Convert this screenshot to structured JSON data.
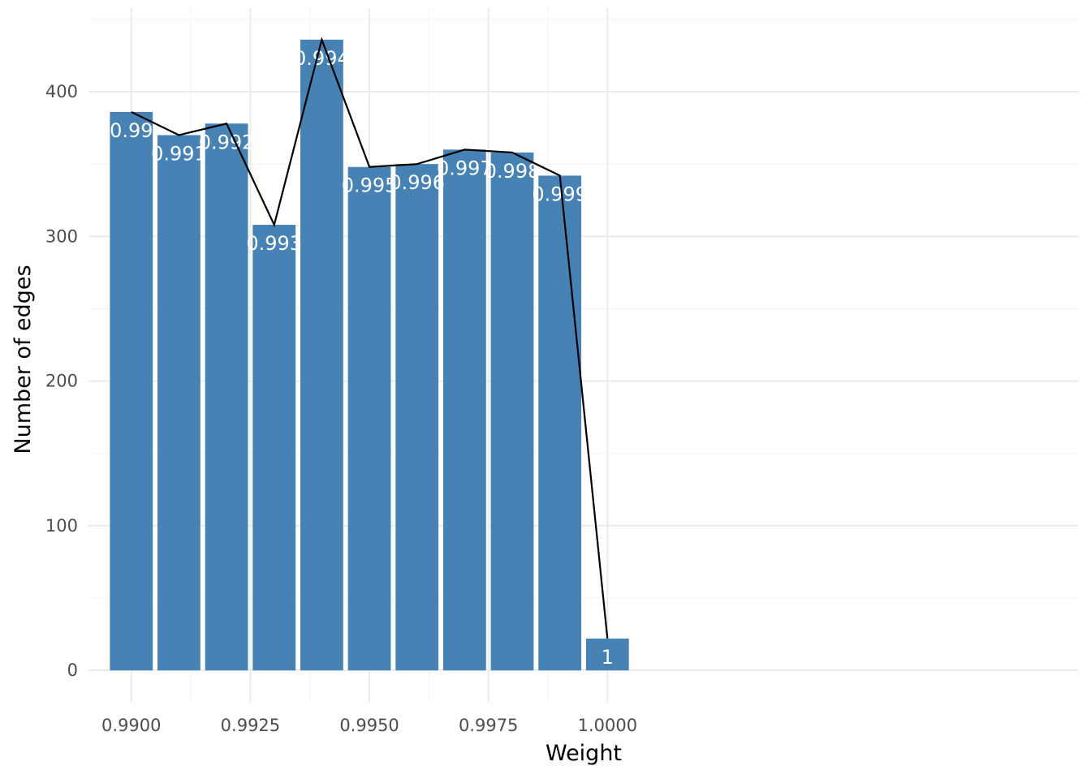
{
  "chart_data": {
    "type": "bar",
    "xlabel": "Weight",
    "ylabel": "Number of edges",
    "x": [
      0.99,
      0.991,
      0.992,
      0.993,
      0.994,
      0.995,
      0.996,
      0.997,
      0.998,
      0.999,
      1.0
    ],
    "values": [
      386,
      370,
      378,
      308,
      436,
      348,
      350,
      360,
      358,
      342,
      22
    ],
    "bar_labels": [
      "0.99",
      "0.991",
      "0.992",
      "0.993",
      "0.994",
      "0.995",
      "0.996",
      "0.997",
      "0.998",
      "0.999",
      "1"
    ],
    "line_overlay": true,
    "xlim": [
      0.9891,
      1.0099
    ],
    "ylim": [
      -21.8,
      457.8
    ],
    "x_ticks": [
      0.99,
      0.9925,
      0.995,
      0.9975,
      1.0
    ],
    "x_tick_labels": [
      "0.9900",
      "0.9925",
      "0.9950",
      "0.9975",
      "1.0000"
    ],
    "y_ticks": [
      0,
      100,
      200,
      300,
      400
    ],
    "y_tick_labels": [
      "0",
      "100",
      "200",
      "300",
      "400"
    ],
    "bar_color": "#4682b4",
    "line_color": "#000000",
    "grid": true
  }
}
